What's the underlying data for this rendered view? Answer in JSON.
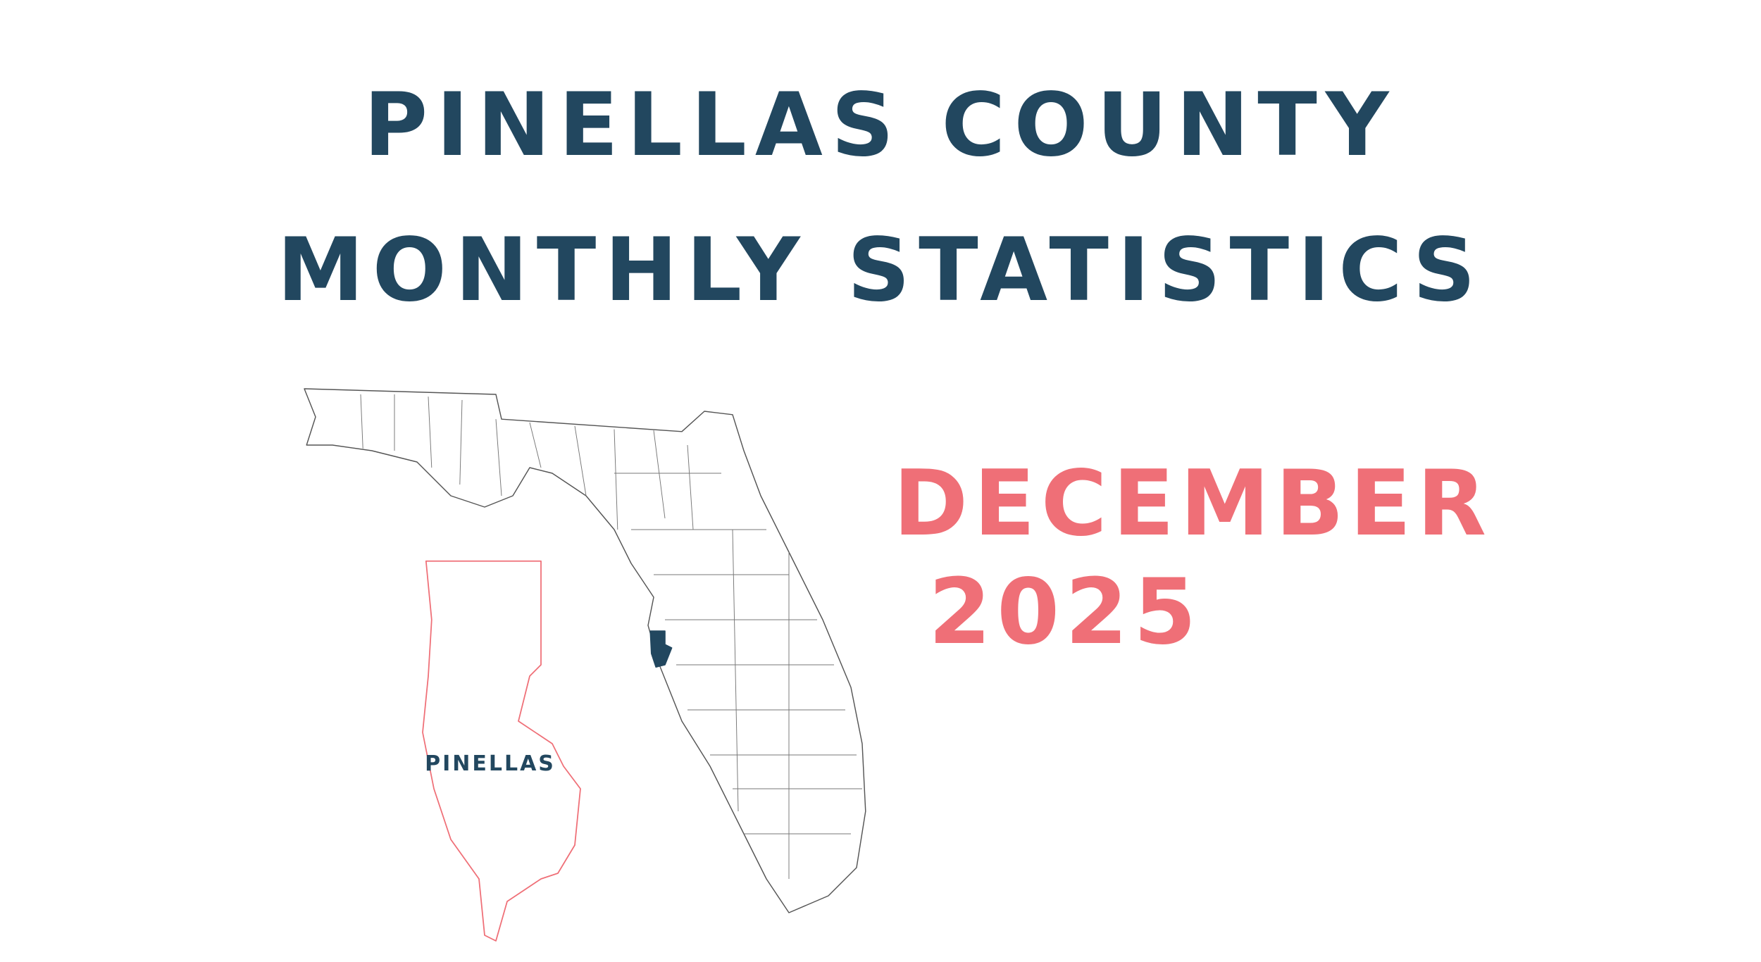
{
  "header": {
    "title_line_1": "PINELLAS COUNTY",
    "title_line_2": "MONTHLY STATISTICS"
  },
  "period": {
    "month": "DECEMBER",
    "year": "2025"
  },
  "map": {
    "inset_label": "PINELLAS"
  }
}
